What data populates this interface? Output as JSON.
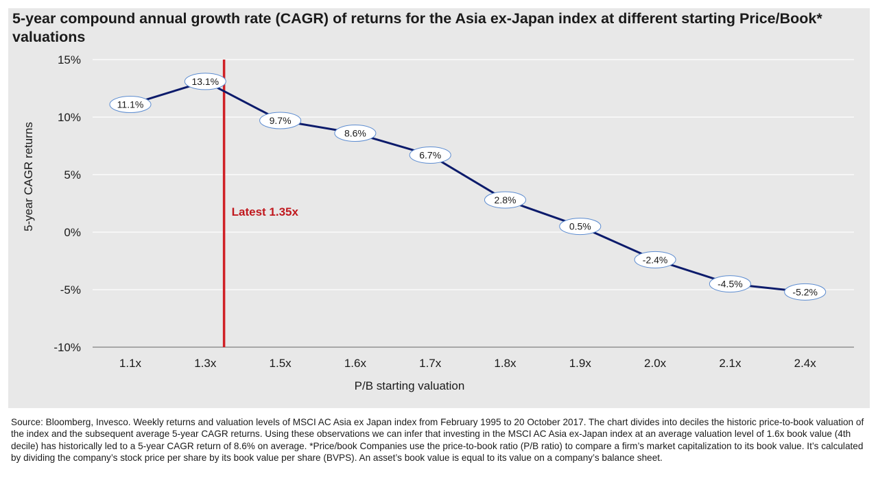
{
  "chart_data": {
    "type": "line",
    "title": "5-year compound annual growth rate (CAGR) of returns for the Asia ex-Japan index at different starting Price/Book* valuations",
    "xlabel": "P/B starting valuation",
    "ylabel": "5-year CAGR returns",
    "categories": [
      "1.1x",
      "1.3x",
      "1.5x",
      "1.6x",
      "1.7x",
      "1.8x",
      "1.9x",
      "2.0x",
      "2.1x",
      "2.4x"
    ],
    "series": [
      {
        "name": "5-year CAGR returns",
        "values": [
          11.1,
          13.1,
          9.7,
          8.6,
          6.7,
          2.8,
          0.5,
          -2.4,
          -4.5,
          -5.2
        ],
        "labels": [
          "11.1%",
          "13.1%",
          "9.7%",
          "8.6%",
          "6.7%",
          "2.8%",
          "0.5%",
          "-2.4%",
          "-4.5%",
          "-5.2%"
        ]
      }
    ],
    "ylim": [
      -10,
      15
    ],
    "yticks": [
      15,
      10,
      5,
      0,
      -5,
      -10
    ],
    "ytick_labels": [
      "15%",
      "10%",
      "5%",
      "0%",
      "-5%",
      "-10%"
    ],
    "grid": true,
    "annotations": [
      {
        "type": "vline",
        "x": 1.35,
        "label": "Latest 1.35x"
      }
    ]
  },
  "colors": {
    "line": "#0c1b6b",
    "marker": "#0c1b6b",
    "vline": "#d02026",
    "annotation_text": "#c0181e",
    "grid": "#ffffff",
    "axis": "#808080",
    "background": "#e8e8e8"
  },
  "footer": {
    "source": "Source: Bloomberg, Invesco. Weekly returns and valuation levels of MSCI AC Asia ex Japan index from February 1995 to 20 October 2017. The chart divides into deciles the historic price-to-book valuation of the index and the subsequent average 5-year CAGR returns. Using these observations we can infer that investing in the MSCI AC Asia ex-Japan index at an average valuation level of 1.6x book value (4th decile) has historically led to a 5-year CAGR return of 8.6% on average. *Price/book Companies use the price-to-book ratio (P/B ratio) to compare a firm’s market capitalization to its book value. It’s calculated by dividing the company’s stock price per share by its book value per share (BVPS). An asset’s book value is equal to its value on a company’s balance sheet."
  }
}
